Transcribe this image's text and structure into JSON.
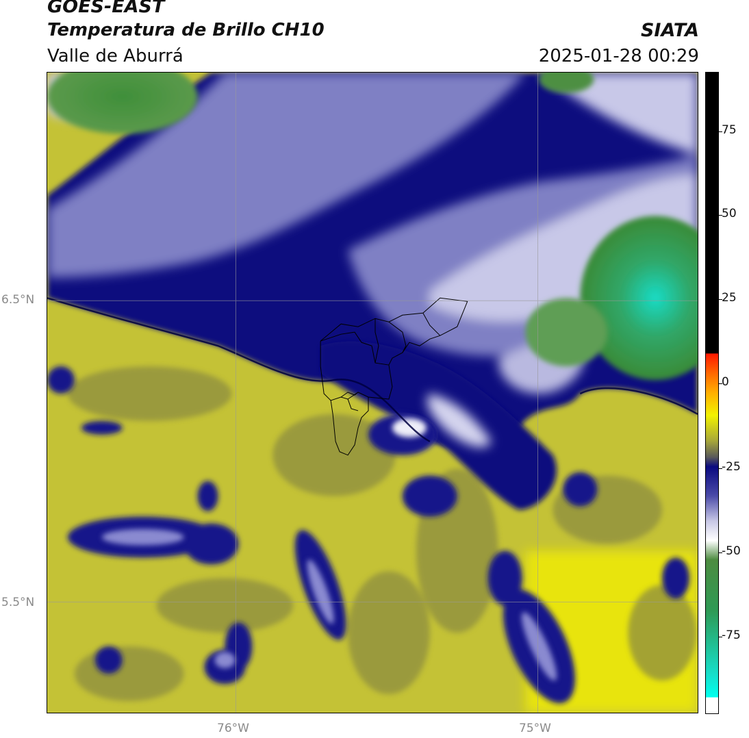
{
  "header": {
    "satellite": "GOES-EAST",
    "product": "Temperatura de Brillo CH10",
    "region": "Valle de Aburrá",
    "brand": "SIATA",
    "datetime": "2025-01-28 00:29"
  },
  "map": {
    "lat_labels": [
      "6.5°N",
      "5.5°N"
    ],
    "lon_labels": [
      "76°W",
      "75°W"
    ],
    "gridlines": true
  },
  "colorbar": {
    "tick_labels": [
      "75",
      "50",
      "25",
      "0",
      "-25",
      "-50",
      "-75"
    ],
    "colors": {
      "warm_black": "#000000",
      "red": "#ff2a00",
      "orange": "#ff8c00",
      "yellow": "#f4f000",
      "olive": "#9a9a3a",
      "navy": "#0a0a7a",
      "lavender": "#b6b6dc",
      "white": "#ffffff",
      "green": "#3f8f3a",
      "cyan": "#11e6d6"
    }
  }
}
